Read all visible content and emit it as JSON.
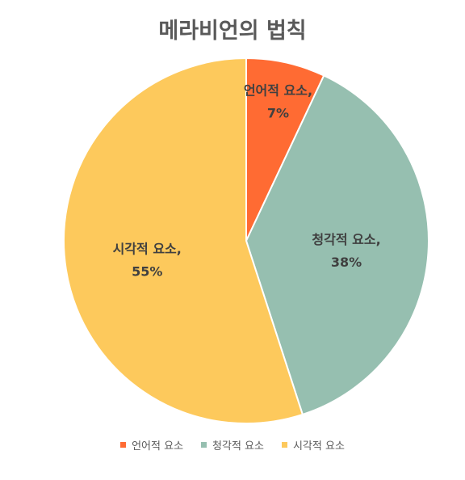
{
  "chart_data": {
    "type": "pie",
    "title": "메라비언의 법칙",
    "slices": [
      {
        "name": "언어적 요소",
        "value": 7,
        "color": "#FF6B33",
        "label_name": "언어적 요소,",
        "label_value": "7%"
      },
      {
        "name": "청각적 요소",
        "value": 38,
        "color": "#96BFB0",
        "label_name": "청각적 요소,",
        "label_value": "38%"
      },
      {
        "name": "시각적 요소",
        "value": 55,
        "color": "#FDC95C",
        "label_name": "시각적 요소,",
        "label_value": "55%"
      }
    ],
    "legend_position": "bottom"
  }
}
